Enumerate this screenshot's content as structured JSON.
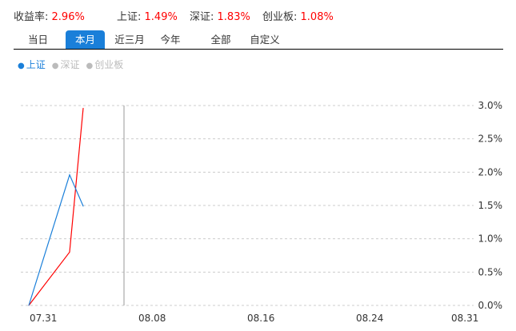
{
  "stats": [
    {
      "label": "收益率: ",
      "value": "2.96%"
    },
    {
      "label": "上证: ",
      "value": "1.49%"
    },
    {
      "label": "深证: ",
      "value": "1.83%"
    },
    {
      "label": "创业板: ",
      "value": "1.08%"
    }
  ],
  "tabs": [
    {
      "label": "当日"
    },
    {
      "label": "本月",
      "active": true
    },
    {
      "label": "近三月"
    },
    {
      "label": "今年"
    },
    {
      "label": "全部"
    },
    {
      "label": "自定义"
    }
  ],
  "legend": [
    {
      "label": "上证",
      "active": true
    },
    {
      "label": "深证",
      "active": false
    },
    {
      "label": "创业板",
      "active": false
    }
  ],
  "colors": {
    "portfolio": "#ff0000",
    "sh": "#1a7fd9",
    "accent": "#1a7fd9"
  },
  "chart_data": {
    "type": "line",
    "x_ticks": [
      "07.31",
      "08.08",
      "08.16",
      "08.24",
      "08.31"
    ],
    "y_ticks": [
      "0.0%",
      "0.5%",
      "1.0%",
      "1.5%",
      "2.0%",
      "2.5%",
      "3.0%"
    ],
    "ylim": [
      0,
      3.0
    ],
    "xlim": [
      "07.31",
      "08.31"
    ],
    "grid": true,
    "crosshair_date": "08.07",
    "series": [
      {
        "name": "收益率",
        "color": "#ff0000",
        "x": [
          "07.31",
          "08.03",
          "08.04"
        ],
        "y": [
          0,
          0.8,
          2.96
        ]
      },
      {
        "name": "上证",
        "color": "#1a7fd9",
        "x": [
          "07.31",
          "08.03",
          "08.04"
        ],
        "y": [
          0,
          1.96,
          1.49
        ]
      }
    ]
  }
}
